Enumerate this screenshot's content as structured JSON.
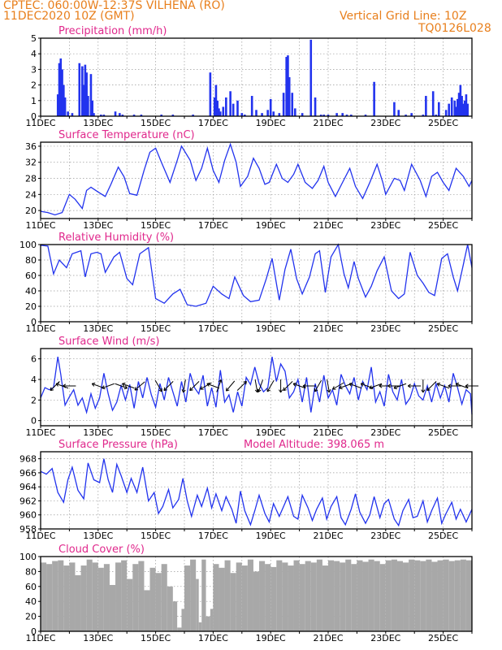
{
  "header": {
    "line1": "CPTEC:   060:00W-12:37S   VILHENA (RO)",
    "line2": "11DEC2020  10Z (GMT)",
    "grid_note": "Vertical Grid Line: 10Z",
    "code": "TQ0126L028"
  },
  "colors": {
    "title": "#e0288c",
    "series": "#2233ee",
    "cloud": "#a8a8a8",
    "header": "#e87f1c"
  },
  "x_tick_labels": [
    "11DEC",
    "13DEC",
    "15DEC",
    "17DEC",
    "19DEC",
    "21DEC",
    "23DEC",
    "25DEC"
  ],
  "chart_data": [
    {
      "type": "bar",
      "title": "Precipitation (mm/h)",
      "ylim": [
        0,
        5
      ],
      "yticks": [
        0,
        1,
        2,
        3,
        4,
        5
      ],
      "xlim_days": [
        11.0,
        26.0
      ],
      "x_days": [
        11.6,
        11.65,
        11.7,
        11.75,
        11.8,
        11.85,
        11.95,
        12.1,
        12.35,
        12.45,
        12.5,
        12.55,
        12.6,
        12.65,
        12.75,
        12.8,
        12.85,
        13.1,
        13.2,
        13.6,
        13.75,
        13.85,
        14.25,
        14.5,
        15.2,
        15.6,
        16.3,
        16.9,
        17.05,
        17.1,
        17.15,
        17.2,
        17.25,
        17.35,
        17.45,
        17.6,
        17.7,
        17.85,
        18.0,
        18.1,
        18.35,
        18.5,
        18.7,
        18.9,
        19.0,
        19.1,
        19.3,
        19.45,
        19.55,
        19.6,
        19.65,
        19.75,
        19.85,
        20.1,
        20.4,
        20.55,
        20.75,
        20.85,
        21.0,
        21.3,
        21.5,
        21.65,
        21.8,
        22.3,
        22.6,
        23.3,
        23.45,
        23.7,
        23.9,
        24.3,
        24.4,
        24.65,
        24.75,
        24.85,
        25.1,
        25.2,
        25.3,
        25.4,
        25.45,
        25.5,
        25.55,
        25.6,
        25.65,
        25.7,
        25.75,
        25.8,
        25.85
      ],
      "values": [
        1.4,
        3.4,
        3.7,
        3.0,
        2.0,
        1.2,
        0.3,
        0.2,
        3.4,
        3.2,
        2.0,
        3.3,
        2.8,
        1.3,
        2.7,
        1.0,
        0.2,
        0.1,
        0.1,
        0.3,
        0.2,
        0.1,
        0.1,
        0.1,
        0.1,
        0.1,
        0.1,
        2.8,
        1.2,
        2.0,
        1.0,
        0.5,
        0.3,
        0.6,
        1.2,
        1.6,
        0.8,
        1.0,
        0.2,
        0.1,
        1.3,
        0.4,
        0.2,
        0.4,
        1.1,
        0.3,
        0.2,
        1.5,
        3.8,
        3.9,
        2.5,
        1.5,
        0.5,
        0.2,
        4.9,
        1.2,
        0.1,
        0.1,
        0.1,
        0.2,
        0.2,
        0.1,
        0.1,
        0.1,
        2.2,
        0.9,
        0.4,
        0.1,
        0.2,
        0.1,
        1.3,
        1.6,
        0.1,
        0.9,
        0.4,
        0.8,
        1.2,
        1.0,
        0.6,
        1.1,
        1.5,
        2.0,
        1.3,
        0.8,
        1.0,
        1.4,
        0.8
      ]
    },
    {
      "type": "line",
      "title": "Surface Temperature (nC)",
      "ylim": [
        18,
        37
      ],
      "yticks": [
        20,
        24,
        28,
        32,
        36
      ],
      "xlim_days": [
        11.0,
        26.0
      ],
      "x_days": [
        11.0,
        11.25,
        11.5,
        11.75,
        12.0,
        12.2,
        12.45,
        12.6,
        12.75,
        13.0,
        13.25,
        13.45,
        13.7,
        13.9,
        14.1,
        14.35,
        14.6,
        14.8,
        15.0,
        15.2,
        15.5,
        15.75,
        15.9,
        16.2,
        16.4,
        16.6,
        16.8,
        17.0,
        17.2,
        17.4,
        17.6,
        17.8,
        17.95,
        18.2,
        18.4,
        18.6,
        18.8,
        18.95,
        19.2,
        19.4,
        19.6,
        19.8,
        19.95,
        20.2,
        20.45,
        20.65,
        20.85,
        21.0,
        21.25,
        21.5,
        21.75,
        21.95,
        22.2,
        22.45,
        22.7,
        22.9,
        23.0,
        23.3,
        23.5,
        23.65,
        23.9,
        24.2,
        24.4,
        24.6,
        24.8,
        25.0,
        25.2,
        25.45,
        25.7,
        25.9,
        26.0
      ],
      "values": [
        19.8,
        19.5,
        18.9,
        19.5,
        24.0,
        22.8,
        20.5,
        25.0,
        25.8,
        24.6,
        23.5,
        26.6,
        30.8,
        28.4,
        24.2,
        23.8,
        30.0,
        34.5,
        35.5,
        32.0,
        27.0,
        32.5,
        36.0,
        32.5,
        27.5,
        30.5,
        35.5,
        30.0,
        27.0,
        32.5,
        36.5,
        32.0,
        26.0,
        28.5,
        33.0,
        30.5,
        26.5,
        27.0,
        31.5,
        28.0,
        27.0,
        29.0,
        31.5,
        27.0,
        25.5,
        27.5,
        31.0,
        27.0,
        23.5,
        27.0,
        30.5,
        26.0,
        23.0,
        27.0,
        31.5,
        27.0,
        24.0,
        28.0,
        27.5,
        25.0,
        31.5,
        27.5,
        23.5,
        28.5,
        29.5,
        27.0,
        25.0,
        30.5,
        28.5,
        26.0,
        27.5
      ]
    },
    {
      "type": "line",
      "title": "Relative Humidity (%)",
      "ylim": [
        0,
        100
      ],
      "yticks": [
        0,
        20,
        40,
        60,
        80,
        100
      ],
      "xlim_days": [
        11.0,
        26.0
      ],
      "x_days": [
        11.0,
        11.25,
        11.45,
        11.65,
        11.9,
        12.1,
        12.4,
        12.55,
        12.75,
        12.95,
        13.1,
        13.25,
        13.55,
        13.75,
        14.0,
        14.2,
        14.45,
        14.6,
        14.75,
        15.0,
        15.3,
        15.6,
        15.85,
        16.1,
        16.4,
        16.75,
        17.0,
        17.3,
        17.55,
        17.75,
        18.05,
        18.3,
        18.6,
        18.85,
        19.05,
        19.3,
        19.5,
        19.7,
        19.9,
        20.1,
        20.35,
        20.55,
        20.7,
        20.9,
        21.1,
        21.35,
        21.55,
        21.7,
        21.9,
        22.05,
        22.3,
        22.5,
        22.7,
        22.95,
        23.2,
        23.45,
        23.65,
        23.85,
        24.1,
        24.3,
        24.5,
        24.7,
        24.95,
        25.15,
        25.35,
        25.5,
        25.7,
        25.85,
        26.0
      ],
      "values": [
        99,
        98,
        62,
        80,
        70,
        88,
        92,
        58,
        88,
        90,
        88,
        64,
        84,
        90,
        56,
        48,
        88,
        92,
        96,
        30,
        24,
        36,
        42,
        22,
        20,
        24,
        46,
        36,
        30,
        58,
        34,
        26,
        28,
        56,
        82,
        28,
        68,
        94,
        56,
        36,
        58,
        88,
        92,
        38,
        84,
        100,
        62,
        44,
        78,
        56,
        32,
        46,
        66,
        84,
        40,
        30,
        36,
        90,
        60,
        50,
        38,
        34,
        82,
        88,
        58,
        40,
        74,
        100,
        70
      ]
    },
    {
      "type": "line",
      "title": "Surface Wind (m/s)",
      "ylim": [
        -0.5,
        7.0
      ],
      "yticks": [
        0,
        2,
        4,
        6
      ],
      "xlim_days": [
        11.0,
        26.0
      ],
      "x_days": [
        11.0,
        11.15,
        11.3,
        11.45,
        11.6,
        11.7,
        11.85,
        12.0,
        12.15,
        12.3,
        12.45,
        12.6,
        12.75,
        12.9,
        13.05,
        13.2,
        13.35,
        13.5,
        13.65,
        13.8,
        13.95,
        14.1,
        14.25,
        14.4,
        14.55,
        14.7,
        14.85,
        15.0,
        15.15,
        15.3,
        15.45,
        15.6,
        15.75,
        15.9,
        16.05,
        16.2,
        16.35,
        16.5,
        16.65,
        16.8,
        16.95,
        17.1,
        17.25,
        17.4,
        17.55,
        17.7,
        17.85,
        18.0,
        18.15,
        18.3,
        18.45,
        18.6,
        18.75,
        18.9,
        19.05,
        19.2,
        19.35,
        19.5,
        19.65,
        19.8,
        19.95,
        20.1,
        20.25,
        20.4,
        20.55,
        20.7,
        20.85,
        21.0,
        21.15,
        21.3,
        21.45,
        21.6,
        21.75,
        21.9,
        22.05,
        22.2,
        22.35,
        22.5,
        22.65,
        22.8,
        22.95,
        23.1,
        23.25,
        23.4,
        23.55,
        23.7,
        23.85,
        24.0,
        24.15,
        24.3,
        24.45,
        24.6,
        24.75,
        24.9,
        25.05,
        25.2,
        25.35,
        25.5,
        25.65,
        25.8,
        25.95,
        26.0
      ],
      "values": [
        2.2,
        3.2,
        3.0,
        3.2,
        6.2,
        4.5,
        1.5,
        2.3,
        3.0,
        1.5,
        2.2,
        0.8,
        2.6,
        1.2,
        2.2,
        4.6,
        2.6,
        1.0,
        1.8,
        3.4,
        2.0,
        3.5,
        1.2,
        3.8,
        2.2,
        4.2,
        2.5,
        1.3,
        3.6,
        2.0,
        4.2,
        2.8,
        1.4,
        3.8,
        1.8,
        4.6,
        3.2,
        2.6,
        4.4,
        1.4,
        3.2,
        1.3,
        4.9,
        1.8,
        2.5,
        0.8,
        2.8,
        1.4,
        4.2,
        3.5,
        5.2,
        3.6,
        2.8,
        3.2,
        6.2,
        3.8,
        5.5,
        4.8,
        2.2,
        2.8,
        4.0,
        1.8,
        4.2,
        0.8,
        3.6,
        1.8,
        4.4,
        2.2,
        3.0,
        1.5,
        4.5,
        3.4,
        2.6,
        4.2,
        2.0,
        3.8,
        3.0,
        5.2,
        1.8,
        2.8,
        1.4,
        4.5,
        2.8,
        2.0,
        4.0,
        1.6,
        2.2,
        3.6,
        2.4,
        2.0,
        3.4,
        1.8,
        3.6,
        2.2,
        3.4,
        1.8,
        4.6,
        3.2,
        1.6,
        3.0,
        2.6,
        0.6
      ]
    },
    {
      "type": "line",
      "title": "Surface Pressure (hPa)",
      "subtitle": "Model Altitude: 398.065 m",
      "ylim": [
        958,
        969
      ],
      "yticks": [
        958,
        960,
        962,
        964,
        966,
        968
      ],
      "xlim_days": [
        11.0,
        26.0
      ],
      "x_days": [
        11.0,
        11.2,
        11.4,
        11.6,
        11.8,
        11.95,
        12.1,
        12.3,
        12.5,
        12.65,
        12.85,
        13.05,
        13.2,
        13.35,
        13.5,
        13.65,
        13.8,
        14.0,
        14.15,
        14.35,
        14.55,
        14.75,
        14.95,
        15.1,
        15.25,
        15.45,
        15.6,
        15.8,
        15.95,
        16.1,
        16.25,
        16.45,
        16.6,
        16.8,
        16.95,
        17.1,
        17.3,
        17.45,
        17.65,
        17.8,
        17.95,
        18.1,
        18.3,
        18.45,
        18.6,
        18.8,
        18.95,
        19.1,
        19.3,
        19.45,
        19.6,
        19.8,
        19.95,
        20.1,
        20.3,
        20.45,
        20.6,
        20.8,
        20.95,
        21.1,
        21.3,
        21.45,
        21.6,
        21.8,
        21.95,
        22.1,
        22.3,
        22.45,
        22.6,
        22.8,
        22.95,
        23.1,
        23.3,
        23.45,
        23.6,
        23.8,
        23.95,
        24.1,
        24.3,
        24.45,
        24.6,
        24.8,
        24.95,
        25.1,
        25.3,
        25.45,
        25.6,
        25.8,
        26.0
      ],
      "values": [
        966.2,
        965.8,
        966.6,
        963.2,
        961.8,
        965.0,
        966.8,
        963.5,
        962.3,
        967.4,
        965.0,
        964.6,
        968.0,
        965.0,
        963.2,
        967.2,
        965.6,
        963.2,
        965.2,
        963.2,
        966.8,
        962.0,
        963.2,
        960.2,
        961.2,
        963.6,
        961.0,
        962.2,
        965.2,
        962.0,
        959.8,
        962.8,
        961.2,
        963.8,
        961.0,
        963.0,
        960.6,
        962.6,
        960.8,
        958.8,
        963.4,
        960.6,
        958.6,
        960.6,
        962.8,
        960.2,
        959.0,
        961.6,
        959.8,
        961.2,
        962.6,
        959.8,
        959.4,
        962.8,
        961.0,
        959.2,
        960.8,
        962.4,
        959.4,
        961.2,
        962.6,
        959.6,
        958.6,
        960.8,
        963.0,
        960.4,
        958.8,
        960.0,
        962.6,
        959.6,
        961.6,
        962.2,
        959.4,
        958.5,
        960.6,
        962.2,
        959.6,
        959.8,
        962.0,
        959.0,
        960.6,
        962.4,
        958.8,
        960.2,
        961.8,
        959.4,
        960.8,
        959.0,
        960.8
      ]
    },
    {
      "type": "area",
      "title": "Cloud Cover (%)",
      "ylim": [
        0,
        100
      ],
      "yticks": [
        0,
        20,
        40,
        60,
        80,
        100
      ],
      "xlim_days": [
        11.0,
        26.0
      ],
      "x_days": [
        11.0,
        11.2,
        11.4,
        11.6,
        11.8,
        12.0,
        12.2,
        12.4,
        12.6,
        12.8,
        13.0,
        13.2,
        13.4,
        13.6,
        13.8,
        14.0,
        14.2,
        14.4,
        14.6,
        14.8,
        15.0,
        15.2,
        15.4,
        15.6,
        15.75,
        15.9,
        16.0,
        16.2,
        16.4,
        16.5,
        16.6,
        16.75,
        16.9,
        17.0,
        17.2,
        17.4,
        17.6,
        17.8,
        18.0,
        18.2,
        18.4,
        18.6,
        18.8,
        19.0,
        19.2,
        19.4,
        19.6,
        19.8,
        20.0,
        20.2,
        20.4,
        20.6,
        20.8,
        21.0,
        21.2,
        21.4,
        21.6,
        21.8,
        22.0,
        22.2,
        22.4,
        22.6,
        22.8,
        23.0,
        23.2,
        23.4,
        23.6,
        23.8,
        24.0,
        24.2,
        24.4,
        24.6,
        24.8,
        25.0,
        25.2,
        25.4,
        25.6,
        25.8,
        26.0
      ],
      "values": [
        92,
        90,
        94,
        95,
        88,
        92,
        75,
        88,
        96,
        92,
        85,
        90,
        62,
        92,
        95,
        70,
        90,
        94,
        55,
        85,
        78,
        90,
        60,
        40,
        5,
        30,
        88,
        96,
        70,
        12,
        96,
        20,
        30,
        90,
        85,
        95,
        78,
        92,
        88,
        96,
        80,
        94,
        90,
        86,
        95,
        92,
        88,
        95,
        90,
        94,
        92,
        96,
        88,
        95,
        94,
        92,
        96,
        90,
        95,
        93,
        96,
        94,
        90,
        95,
        96,
        94,
        92,
        96,
        95,
        94,
        96,
        93,
        95,
        96,
        94,
        95,
        96,
        95,
        96
      ]
    }
  ],
  "wind_arrows": {
    "x_days": [
      11.5,
      11.75,
      12.0,
      13.0,
      13.35,
      13.8,
      14.05,
      14.45,
      15.1,
      15.45,
      16.0,
      16.35,
      16.75,
      17.0,
      17.2,
      17.6,
      18.0,
      18.5,
      18.65,
      19.0,
      19.35,
      19.6,
      20.0,
      20.35,
      20.65,
      21.0,
      21.35,
      21.6,
      21.95,
      22.35,
      22.65,
      23.0,
      23.3,
      23.5,
      24.0,
      24.3,
      24.6,
      25.0,
      25.4,
      25.65,
      26.0
    ],
    "angle_deg": [
      135,
      200,
      180,
      200,
      160,
      20,
      200,
      140,
      60,
      135,
      100,
      135,
      150,
      200,
      -70,
      130,
      -45,
      80,
      110,
      120,
      90,
      135,
      200,
      180,
      120,
      80,
      150,
      160,
      200,
      200,
      160,
      180,
      180,
      160,
      180,
      90,
      135,
      200,
      180,
      200,
      180
    ]
  }
}
